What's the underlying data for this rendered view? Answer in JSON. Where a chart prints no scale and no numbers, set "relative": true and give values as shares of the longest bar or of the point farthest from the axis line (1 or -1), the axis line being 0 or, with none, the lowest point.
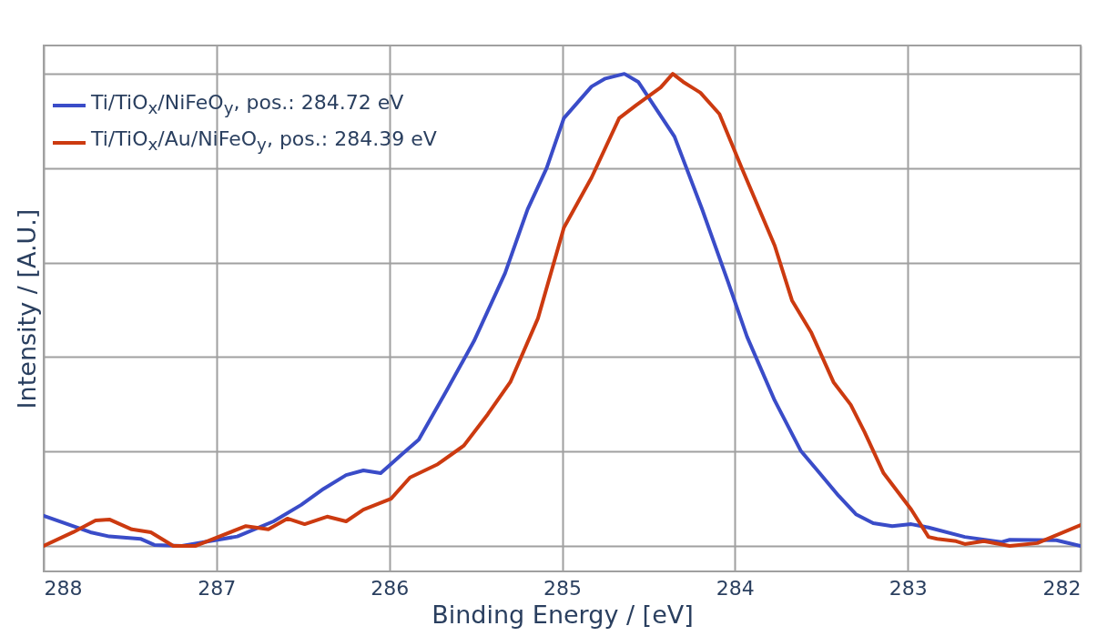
{
  "chart_data": {
    "type": "line",
    "xlabel": "Binding Energy / [eV]",
    "ylabel": "Intensity / [A.U.]",
    "relative": true,
    "xlim": [
      288,
      282
    ],
    "xticks": [
      288,
      287,
      286,
      285,
      284,
      283,
      282
    ],
    "grid": true,
    "legend": "top left",
    "line_style": "solid",
    "marker": "none",
    "series": [
      {
        "name": "Ti/TiO$_{x}$/NiFeO$_{y}$, pos.: 284.72 eV",
        "color": "#3a4cc8",
        "x": [
          288,
          287.73,
          287.62,
          287.44,
          287.36,
          287.2,
          287.04,
          286.88,
          286.67,
          286.51,
          286.38,
          286.25,
          286.15,
          286.05,
          285.93,
          285.83,
          285.67,
          285.51,
          285.33,
          285.2,
          285.09,
          284.99,
          284.83,
          284.75,
          284.64,
          284.56,
          284.35,
          284.19,
          284.04,
          283.93,
          283.77,
          283.62,
          283.51,
          283.4,
          283.3,
          283.2,
          283.09,
          282.98,
          282.88,
          282.67,
          282.46,
          282.41,
          282.14,
          282
        ],
        "values": [
          0.064,
          0.029,
          0.02,
          0.015,
          0.002,
          0,
          0.01,
          0.02,
          0.052,
          0.087,
          0.121,
          0.15,
          0.16,
          0.154,
          0.193,
          0.225,
          0.328,
          0.434,
          0.578,
          0.713,
          0.8,
          0.906,
          0.973,
          0.99,
          1,
          0.983,
          0.867,
          0.713,
          0.559,
          0.443,
          0.308,
          0.202,
          0.154,
          0.106,
          0.067,
          0.048,
          0.042,
          0.046,
          0.039,
          0.019,
          0.008,
          0.013,
          0.012,
          0
        ]
      },
      {
        "name": "Ti/TiO$_{x}$/Au/NiFeO$_{y}$, pos.: 284.39 eV",
        "color": "#cc3a10",
        "x": [
          288,
          287.83,
          287.7,
          287.62,
          287.49,
          287.38,
          287.25,
          287.12,
          286.99,
          286.83,
          286.7,
          286.59,
          286.49,
          286.36,
          286.25,
          286.15,
          285.99,
          285.88,
          285.72,
          285.57,
          285.43,
          285.3,
          285.14,
          284.99,
          284.83,
          284.67,
          284.57,
          284.43,
          284.36,
          284.3,
          284.2,
          284.09,
          283.96,
          283.77,
          283.67,
          283.56,
          283.43,
          283.33,
          283.25,
          283.14,
          282.98,
          282.88,
          282.83,
          282.72,
          282.67,
          282.56,
          282.41,
          282.25,
          282
        ],
        "values": [
          0,
          0.029,
          0.054,
          0.056,
          0.035,
          0.029,
          0,
          0,
          0.019,
          0.042,
          0.035,
          0.058,
          0.046,
          0.062,
          0.052,
          0.077,
          0.1,
          0.145,
          0.173,
          0.212,
          0.279,
          0.347,
          0.482,
          0.674,
          0.78,
          0.906,
          0.934,
          0.971,
          1,
          0.983,
          0.96,
          0.915,
          0.8,
          0.636,
          0.52,
          0.453,
          0.347,
          0.299,
          0.241,
          0.154,
          0.077,
          0.019,
          0.015,
          0.01,
          0.004,
          0.01,
          0,
          0.006,
          0.044
        ]
      }
    ]
  }
}
